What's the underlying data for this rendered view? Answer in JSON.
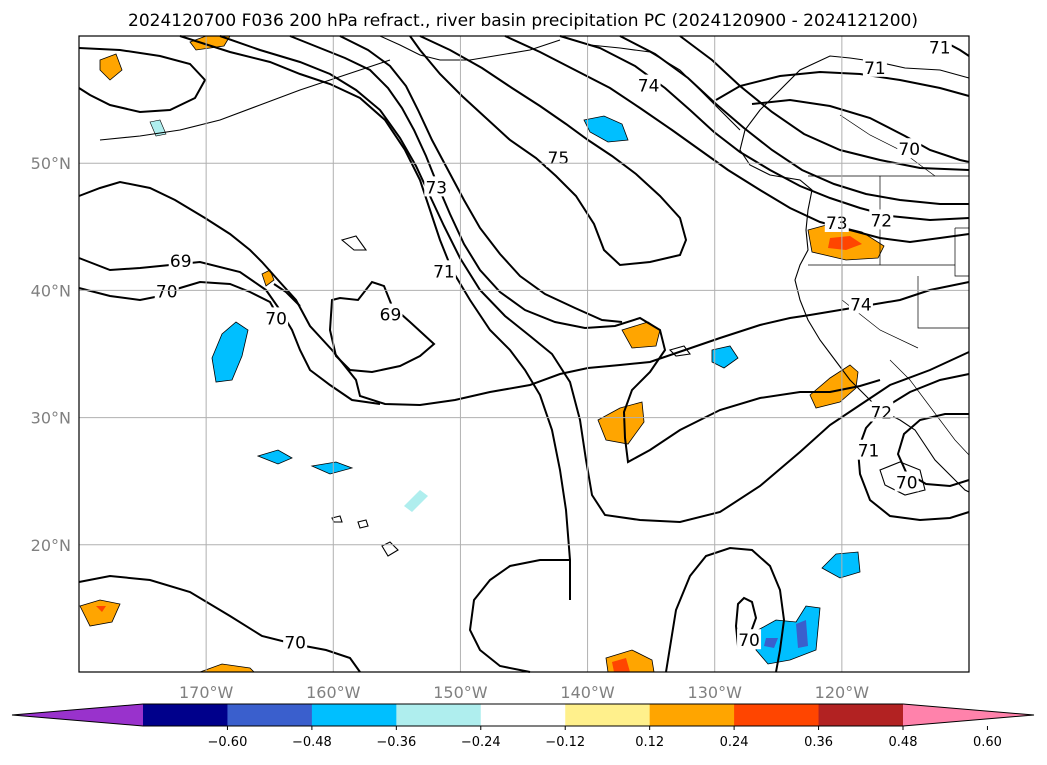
{
  "chart_data": {
    "type": "map",
    "title": "2024120700 F036 200 hPa refract., river basin precipitation PC (2024120900 - 2024121200)",
    "xlim": [
      -180,
      -110
    ],
    "ylim": [
      10,
      60
    ],
    "grid": true,
    "lon_ticks": [
      {
        "value": -170,
        "label": "170°W"
      },
      {
        "value": -160,
        "label": "160°W"
      },
      {
        "value": -150,
        "label": "150°W"
      },
      {
        "value": -140,
        "label": "140°W"
      },
      {
        "value": -130,
        "label": "130°W"
      },
      {
        "value": -120,
        "label": "120°W"
      }
    ],
    "lat_ticks": [
      {
        "value": 20,
        "label": "20°N"
      },
      {
        "value": 30,
        "label": "30°N"
      },
      {
        "value": 40,
        "label": "40°N"
      },
      {
        "value": 50,
        "label": "50°N"
      }
    ],
    "contour_labels": [
      {
        "text": "69",
        "lon": -172,
        "lat": 42.3
      },
      {
        "text": "70",
        "lon": -173.1,
        "lat": 39.9
      },
      {
        "text": "70",
        "lon": -164.5,
        "lat": 37.8
      },
      {
        "text": "69",
        "lon": -155.5,
        "lat": 38.1
      },
      {
        "text": "71",
        "lon": -151.3,
        "lat": 41.5
      },
      {
        "text": "73",
        "lon": -151.9,
        "lat": 48.1
      },
      {
        "text": "75",
        "lon": -142.3,
        "lat": 50.4
      },
      {
        "text": "74",
        "lon": -135.2,
        "lat": 56.1
      },
      {
        "text": "71",
        "lon": -117.4,
        "lat": 57.5
      },
      {
        "text": "70",
        "lon": -114.7,
        "lat": 51.1
      },
      {
        "text": "73",
        "lon": -120.4,
        "lat": 45.3
      },
      {
        "text": "72",
        "lon": -116.9,
        "lat": 45.5
      },
      {
        "text": "74",
        "lon": -118.5,
        "lat": 38.9
      },
      {
        "text": "72",
        "lon": -116.9,
        "lat": 30.4
      },
      {
        "text": "71",
        "lon": -117.9,
        "lat": 27.4
      },
      {
        "text": "70",
        "lon": -114.9,
        "lat": 24.9
      },
      {
        "text": "70",
        "lon": -163,
        "lat": 12.3
      },
      {
        "text": "70",
        "lon": -127.3,
        "lat": 12.5
      },
      {
        "text": "71",
        "lon": -112.3,
        "lat": 59.1
      }
    ],
    "colorbar": {
      "ticks": [
        "−0.60",
        "−0.48",
        "−0.36",
        "−0.24",
        "−0.12",
        "0.12",
        "0.24",
        "0.36",
        "0.48",
        "0.60"
      ],
      "colors": [
        "#9932cc",
        "#00008b",
        "#3a5fcd",
        "#00bfff",
        "#afeeee",
        "#ffffff",
        "#fff08c",
        "#ffa500",
        "#ff4500",
        "#b22222",
        "#ff82ab"
      ]
    }
  }
}
